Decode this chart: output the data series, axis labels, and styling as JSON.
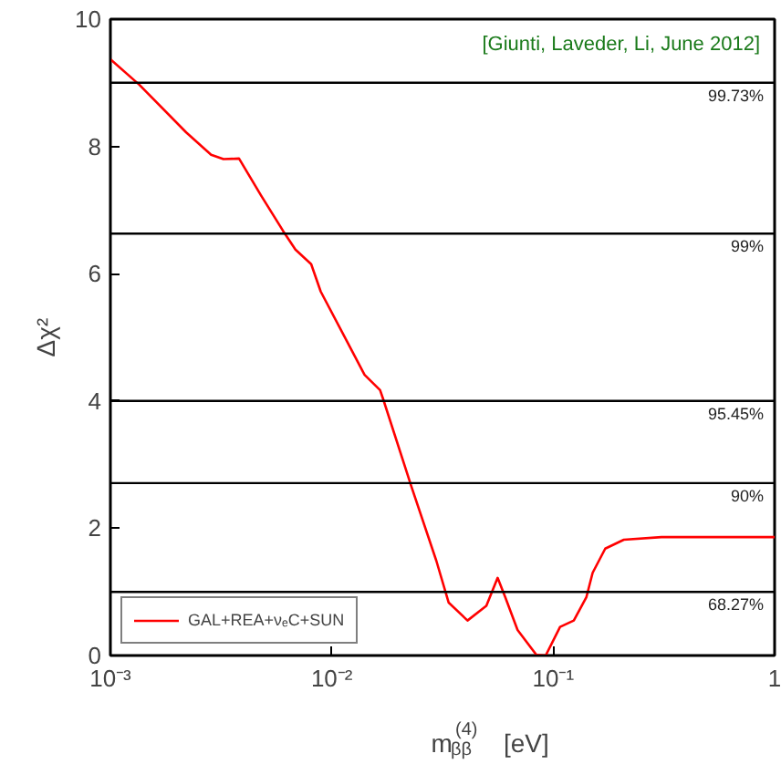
{
  "chart_data": {
    "type": "line",
    "xlabel": "m$_{ββ}$$^{(4)}$   [eV]",
    "ylabel": "Δχ²",
    "log": "x",
    "grid": false,
    "legend": "bottom left",
    "line_style": "solid",
    "xlim": [
      0.001,
      1
    ],
    "ylim": [
      0,
      10
    ],
    "xticks": [
      {
        "value": 0.001,
        "label": "10⁻³"
      },
      {
        "value": 0.01,
        "label": "10⁻²"
      },
      {
        "value": 0.1,
        "label": "10⁻¹"
      },
      1
    ],
    "yticks": [
      0,
      2,
      4,
      6,
      8,
      10
    ],
    "annotations": [
      "[Giunti, Laveder, Li, June 2012]",
      {
        "text": "99.73%",
        "y": 9
      },
      {
        "text": "99%",
        "y": 6.63
      },
      {
        "text": "95.45%",
        "y": 4
      },
      {
        "text": "90%",
        "y": 2.71
      },
      {
        "text": "68.27%",
        "y": 1
      }
    ],
    "ref_lines": [
      {
        "axis": "y",
        "value": 9,
        "color": "#000000"
      },
      {
        "axis": "y",
        "value": 6.63,
        "color": "#000000"
      },
      {
        "axis": "y",
        "value": 4,
        "color": "#000000"
      },
      {
        "axis": "y",
        "value": 2.71,
        "color": "#000000"
      },
      {
        "axis": "y",
        "value": 1,
        "color": "#000000"
      }
    ],
    "series": [
      {
        "name": "GAL+REA+νₑC+SUN",
        "color": "#ff0000",
        "x": [
          0.001,
          0.00135,
          0.0022,
          0.00285,
          0.00324,
          0.00381,
          0.00479,
          0.00603,
          0.00685,
          0.00807,
          0.00891,
          0.01122,
          0.01406,
          0.01652,
          0.01706,
          0.02286,
          0.02965,
          0.03373,
          0.04102,
          0.04989,
          0.0561,
          0.06067,
          0.06902,
          0.08395,
          0.09247,
          0.1074,
          0.1239,
          0.1413,
          0.1507,
          0.1718,
          0.2084,
          0.3083,
          1
        ],
        "values": [
          9.37,
          8.97,
          8.22,
          7.87,
          7.8,
          7.81,
          7.23,
          6.67,
          6.38,
          6.15,
          5.72,
          5.06,
          4.41,
          4.17,
          4.03,
          2.66,
          1.49,
          0.83,
          0.55,
          0.78,
          1.22,
          0.92,
          0.4,
          0.01,
          0,
          0.45,
          0.55,
          0.92,
          1.3,
          1.68,
          1.82,
          1.86,
          1.86
        ]
      }
    ]
  }
}
